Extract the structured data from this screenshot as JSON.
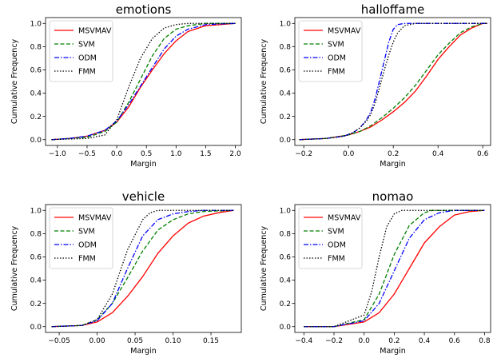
{
  "chart_data": [
    {
      "type": "line",
      "title": "emotions",
      "xlabel": "Margin",
      "ylabel": "Cumulative Frequency",
      "xlim": [
        -1.2,
        2.1
      ],
      "ylim": [
        -0.05,
        1.05
      ],
      "xticks": [
        -1.0,
        -0.5,
        0.0,
        0.5,
        1.0,
        1.5,
        2.0
      ],
      "xtick_labels": [
        "−1.0",
        "−0.5",
        "0.0",
        "0.5",
        "1.0",
        "1.5",
        "2.0"
      ],
      "yticks": [
        0.0,
        0.2,
        0.4,
        0.6,
        0.8,
        1.0
      ],
      "ytick_labels": [
        "0.0",
        "0.2",
        "0.4",
        "0.6",
        "0.8",
        "1.0"
      ],
      "legend": "top-left",
      "grid": false,
      "series": [
        {
          "name": "MSVMAV",
          "color": "#ff0000",
          "dash": "solid",
          "points": [
            [
              -1.1,
              0.0
            ],
            [
              -0.8,
              0.01
            ],
            [
              -0.5,
              0.03
            ],
            [
              -0.2,
              0.08
            ],
            [
              0.0,
              0.15
            ],
            [
              0.2,
              0.28
            ],
            [
              0.4,
              0.45
            ],
            [
              0.6,
              0.6
            ],
            [
              0.8,
              0.74
            ],
            [
              1.0,
              0.85
            ],
            [
              1.2,
              0.93
            ],
            [
              1.5,
              0.98
            ],
            [
              2.0,
              1.0
            ]
          ]
        },
        {
          "name": "SVM",
          "color": "#008000",
          "dash": "dashed",
          "points": [
            [
              -1.1,
              0.0
            ],
            [
              -0.8,
              0.01
            ],
            [
              -0.5,
              0.02
            ],
            [
              -0.2,
              0.07
            ],
            [
              0.0,
              0.15
            ],
            [
              0.2,
              0.32
            ],
            [
              0.4,
              0.52
            ],
            [
              0.6,
              0.72
            ],
            [
              0.8,
              0.87
            ],
            [
              1.0,
              0.95
            ],
            [
              1.2,
              0.98
            ],
            [
              1.5,
              1.0
            ],
            [
              2.0,
              1.0
            ]
          ]
        },
        {
          "name": "ODM",
          "color": "#0000ff",
          "dash": "dashdot",
          "points": [
            [
              -1.1,
              0.0
            ],
            [
              -0.8,
              0.01
            ],
            [
              -0.5,
              0.03
            ],
            [
              -0.2,
              0.08
            ],
            [
              0.0,
              0.16
            ],
            [
              0.2,
              0.3
            ],
            [
              0.4,
              0.46
            ],
            [
              0.6,
              0.62
            ],
            [
              0.8,
              0.78
            ],
            [
              1.0,
              0.89
            ],
            [
              1.2,
              0.95
            ],
            [
              1.5,
              0.99
            ],
            [
              2.0,
              1.0
            ]
          ]
        },
        {
          "name": "FMM",
          "color": "#000000",
          "dash": "dotted",
          "points": [
            [
              -1.1,
              0.0
            ],
            [
              -0.8,
              0.005
            ],
            [
              -0.5,
              0.01
            ],
            [
              -0.2,
              0.04
            ],
            [
              0.0,
              0.17
            ],
            [
              0.2,
              0.45
            ],
            [
              0.4,
              0.7
            ],
            [
              0.6,
              0.87
            ],
            [
              0.8,
              0.96
            ],
            [
              1.0,
              0.99
            ],
            [
              1.2,
              1.0
            ],
            [
              2.0,
              1.0
            ]
          ]
        }
      ]
    },
    {
      "type": "line",
      "title": "halloffame",
      "xlabel": "Margin",
      "ylabel": "Cumulative Frequency",
      "xlim": [
        -0.24,
        0.635
      ],
      "ylim": [
        -0.05,
        1.05
      ],
      "xticks": [
        -0.2,
        0.0,
        0.2,
        0.4,
        0.6
      ],
      "xtick_labels": [
        "−0.2",
        "0.0",
        "0.2",
        "0.4",
        "0.6"
      ],
      "yticks": [
        0.0,
        0.2,
        0.4,
        0.6,
        0.8,
        1.0
      ],
      "ytick_labels": [
        "0.0",
        "0.2",
        "0.4",
        "0.6",
        "0.8",
        "1.0"
      ],
      "legend": "top-left",
      "grid": false,
      "series": [
        {
          "name": "MSVMAV",
          "color": "#ff0000",
          "dash": "solid",
          "points": [
            [
              -0.22,
              0.0
            ],
            [
              -0.1,
              0.01
            ],
            [
              0.0,
              0.04
            ],
            [
              0.05,
              0.07
            ],
            [
              0.1,
              0.11
            ],
            [
              0.15,
              0.17
            ],
            [
              0.2,
              0.24
            ],
            [
              0.25,
              0.32
            ],
            [
              0.3,
              0.42
            ],
            [
              0.35,
              0.55
            ],
            [
              0.4,
              0.69
            ],
            [
              0.45,
              0.8
            ],
            [
              0.5,
              0.9
            ],
            [
              0.55,
              0.96
            ],
            [
              0.6,
              1.0
            ],
            [
              0.62,
              1.0
            ]
          ]
        },
        {
          "name": "SVM",
          "color": "#008000",
          "dash": "dashed",
          "points": [
            [
              -0.22,
              0.0
            ],
            [
              -0.1,
              0.01
            ],
            [
              0.0,
              0.04
            ],
            [
              0.05,
              0.07
            ],
            [
              0.1,
              0.12
            ],
            [
              0.15,
              0.19
            ],
            [
              0.2,
              0.27
            ],
            [
              0.25,
              0.36
            ],
            [
              0.3,
              0.47
            ],
            [
              0.35,
              0.6
            ],
            [
              0.4,
              0.73
            ],
            [
              0.45,
              0.83
            ],
            [
              0.5,
              0.92
            ],
            [
              0.55,
              0.97
            ],
            [
              0.6,
              1.0
            ],
            [
              0.62,
              1.0
            ]
          ]
        },
        {
          "name": "ODM",
          "color": "#0000ff",
          "dash": "dashdot",
          "points": [
            [
              -0.22,
              0.0
            ],
            [
              -0.1,
              0.01
            ],
            [
              -0.02,
              0.03
            ],
            [
              0.02,
              0.06
            ],
            [
              0.05,
              0.1
            ],
            [
              0.08,
              0.17
            ],
            [
              0.1,
              0.24
            ],
            [
              0.12,
              0.36
            ],
            [
              0.14,
              0.52
            ],
            [
              0.16,
              0.68
            ],
            [
              0.18,
              0.84
            ],
            [
              0.2,
              0.95
            ],
            [
              0.22,
              0.99
            ],
            [
              0.25,
              1.0
            ],
            [
              0.62,
              1.0
            ]
          ]
        },
        {
          "name": "FMM",
          "color": "#000000",
          "dash": "dotted",
          "points": [
            [
              -0.22,
              0.0
            ],
            [
              -0.1,
              0.01
            ],
            [
              -0.02,
              0.03
            ],
            [
              0.02,
              0.06
            ],
            [
              0.05,
              0.1
            ],
            [
              0.08,
              0.16
            ],
            [
              0.1,
              0.22
            ],
            [
              0.12,
              0.32
            ],
            [
              0.14,
              0.46
            ],
            [
              0.16,
              0.6
            ],
            [
              0.18,
              0.73
            ],
            [
              0.2,
              0.84
            ],
            [
              0.22,
              0.92
            ],
            [
              0.25,
              0.98
            ],
            [
              0.3,
              1.0
            ],
            [
              0.62,
              1.0
            ]
          ]
        }
      ]
    },
    {
      "type": "line",
      "title": "vehicle",
      "xlabel": "Margin",
      "ylabel": "Cumulative Frequency",
      "xlim": [
        -0.068,
        0.19
      ],
      "ylim": [
        -0.05,
        1.05
      ],
      "xticks": [
        -0.05,
        0.0,
        0.05,
        0.1,
        0.15
      ],
      "xtick_labels": [
        "−0.05",
        "0.00",
        "0.05",
        "0.10",
        "0.15"
      ],
      "yticks": [
        0.0,
        0.2,
        0.4,
        0.6,
        0.8,
        1.0
      ],
      "ytick_labels": [
        "0.0",
        "0.2",
        "0.4",
        "0.6",
        "0.8",
        "1.0"
      ],
      "legend": "top-left",
      "grid": false,
      "series": [
        {
          "name": "MSVMAV",
          "color": "#ff0000",
          "dash": "solid",
          "points": [
            [
              -0.06,
              0.0
            ],
            [
              -0.02,
              0.01
            ],
            [
              0.0,
              0.04
            ],
            [
              0.02,
              0.12
            ],
            [
              0.04,
              0.26
            ],
            [
              0.06,
              0.43
            ],
            [
              0.08,
              0.63
            ],
            [
              0.1,
              0.78
            ],
            [
              0.12,
              0.89
            ],
            [
              0.14,
              0.95
            ],
            [
              0.16,
              0.98
            ],
            [
              0.18,
              1.0
            ]
          ]
        },
        {
          "name": "SVM",
          "color": "#008000",
          "dash": "dashed",
          "points": [
            [
              -0.06,
              0.0
            ],
            [
              -0.02,
              0.01
            ],
            [
              0.0,
              0.06
            ],
            [
              0.02,
              0.2
            ],
            [
              0.04,
              0.42
            ],
            [
              0.06,
              0.65
            ],
            [
              0.08,
              0.83
            ],
            [
              0.1,
              0.92
            ],
            [
              0.12,
              0.97
            ],
            [
              0.14,
              0.99
            ],
            [
              0.18,
              1.0
            ]
          ]
        },
        {
          "name": "ODM",
          "color": "#0000ff",
          "dash": "dashdot",
          "points": [
            [
              -0.06,
              0.0
            ],
            [
              -0.02,
              0.01
            ],
            [
              0.0,
              0.05
            ],
            [
              0.02,
              0.2
            ],
            [
              0.04,
              0.5
            ],
            [
              0.06,
              0.78
            ],
            [
              0.08,
              0.92
            ],
            [
              0.1,
              0.97
            ],
            [
              0.12,
              0.99
            ],
            [
              0.14,
              1.0
            ],
            [
              0.18,
              1.0
            ]
          ]
        },
        {
          "name": "FMM",
          "color": "#000000",
          "dash": "dotted",
          "points": [
            [
              -0.06,
              0.0
            ],
            [
              -0.02,
              0.01
            ],
            [
              0.0,
              0.06
            ],
            [
              0.02,
              0.28
            ],
            [
              0.04,
              0.66
            ],
            [
              0.06,
              0.92
            ],
            [
              0.07,
              0.98
            ],
            [
              0.08,
              1.0
            ],
            [
              0.18,
              1.0
            ]
          ]
        }
      ]
    },
    {
      "type": "line",
      "title": "nomao",
      "xlabel": "Margin",
      "ylabel": "Cumulative Frequency",
      "xlim": [
        -0.46,
        0.84
      ],
      "ylim": [
        -0.05,
        1.05
      ],
      "xticks": [
        -0.4,
        -0.2,
        0.0,
        0.2,
        0.4,
        0.6,
        0.8
      ],
      "xtick_labels": [
        "−0.4",
        "−0.2",
        "0.0",
        "0.2",
        "0.4",
        "0.6",
        "0.8"
      ],
      "yticks": [
        0.0,
        0.2,
        0.4,
        0.6,
        0.8,
        1.0
      ],
      "ytick_labels": [
        "0.0",
        "0.2",
        "0.4",
        "0.6",
        "0.8",
        "1.0"
      ],
      "legend": "top-left",
      "grid": false,
      "series": [
        {
          "name": "MSVMAV",
          "color": "#ff0000",
          "dash": "solid",
          "points": [
            [
              -0.4,
              0.0
            ],
            [
              -0.2,
              0.0
            ],
            [
              0.0,
              0.04
            ],
            [
              0.1,
              0.12
            ],
            [
              0.2,
              0.28
            ],
            [
              0.3,
              0.5
            ],
            [
              0.4,
              0.72
            ],
            [
              0.5,
              0.86
            ],
            [
              0.6,
              0.96
            ],
            [
              0.7,
              0.99
            ],
            [
              0.8,
              1.0
            ]
          ]
        },
        {
          "name": "SVM",
          "color": "#008000",
          "dash": "dashed",
          "points": [
            [
              -0.4,
              0.0
            ],
            [
              -0.2,
              0.0
            ],
            [
              0.0,
              0.06
            ],
            [
              0.1,
              0.28
            ],
            [
              0.2,
              0.62
            ],
            [
              0.3,
              0.87
            ],
            [
              0.4,
              0.98
            ],
            [
              0.45,
              1.0
            ],
            [
              0.8,
              1.0
            ]
          ]
        },
        {
          "name": "ODM",
          "color": "#0000ff",
          "dash": "dashdot",
          "points": [
            [
              -0.4,
              0.0
            ],
            [
              -0.2,
              0.0
            ],
            [
              0.0,
              0.05
            ],
            [
              0.1,
              0.2
            ],
            [
              0.2,
              0.48
            ],
            [
              0.3,
              0.76
            ],
            [
              0.4,
              0.92
            ],
            [
              0.5,
              0.98
            ],
            [
              0.6,
              1.0
            ],
            [
              0.8,
              1.0
            ]
          ]
        },
        {
          "name": "FMM",
          "color": "#000000",
          "dash": "dotted",
          "points": [
            [
              -0.4,
              0.0
            ],
            [
              -0.2,
              0.0
            ],
            [
              0.0,
              0.1
            ],
            [
              0.05,
              0.3
            ],
            [
              0.1,
              0.6
            ],
            [
              0.15,
              0.86
            ],
            [
              0.2,
              0.97
            ],
            [
              0.25,
              1.0
            ],
            [
              0.8,
              1.0
            ]
          ]
        }
      ]
    }
  ]
}
